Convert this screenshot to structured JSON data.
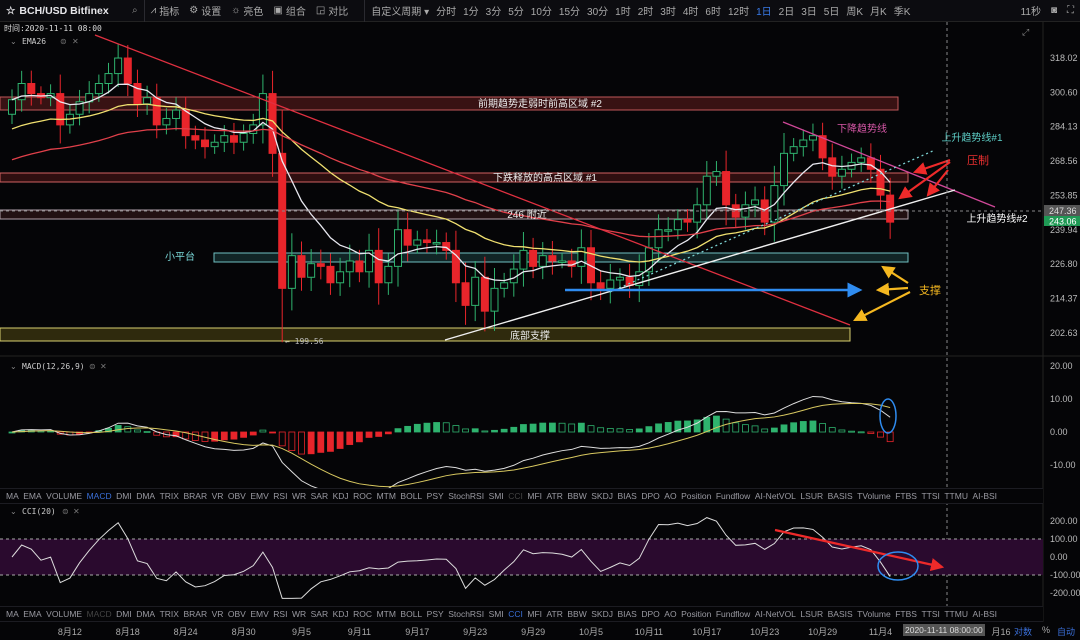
{
  "toolbar": {
    "symbol": "BCH/USD Bitfinex",
    "tools": [
      "指标",
      "设置",
      "亮色",
      "组合",
      "对比"
    ],
    "custom_period": "自定义周期",
    "periods": [
      "分时",
      "1分",
      "3分",
      "5分",
      "10分",
      "15分",
      "30分",
      "1时",
      "2时",
      "3时",
      "4时",
      "6时",
      "12时",
      "1日",
      "2日",
      "3日",
      "5日",
      "周K",
      "月K",
      "季K"
    ],
    "active_period": "1日",
    "countdown": "11秒"
  },
  "main": {
    "time_readout": "时间:2020-11-11 08:00",
    "indicator_label": "EMA26",
    "price_ticks": [
      "318.02",
      "300.60",
      "284.13",
      "268.56",
      "253.85",
      "239.94",
      "226.80",
      "214.37",
      "202.63"
    ],
    "crosshair_price": "247.36",
    "last_price": "243.06",
    "low_label": "199.56",
    "annotations": {
      "zone2": "前期趋势走弱时前高区域 #2",
      "zone1": "下跌释放的高点区域 #1",
      "zone246": "246 附近",
      "platform": "小平台",
      "bottom": "底部支撑",
      "downtrend": "下降趋势线",
      "uptrend1": "上升趋势线#1",
      "uptrend2": "上升趋势线#2",
      "resistance": "压制",
      "support": "支撑"
    },
    "colors": {
      "up": "#2fb36e",
      "down": "#e8252b",
      "ema_fast": "#e8e8f0",
      "ema_mid": "#f0e070",
      "ema_slow": "#e0404a",
      "accent": "#3a7be8"
    }
  },
  "macd": {
    "label": "MACD(12,26,9)",
    "ticks": [
      "20.00",
      "10.00",
      "0.00",
      "-10.00"
    ]
  },
  "cci": {
    "label": "CCI(20)",
    "ticks": [
      "200.00",
      "100.00",
      "0.00",
      "-100.00",
      "-200.00"
    ]
  },
  "indicators": [
    "MA",
    "EMA",
    "VOLUME",
    "MACD",
    "DMI",
    "DMA",
    "TRIX",
    "BRAR",
    "VR",
    "OBV",
    "EMV",
    "RSI",
    "WR",
    "SAR",
    "KDJ",
    "ROC",
    "MTM",
    "BOLL",
    "PSY",
    "StochRSI",
    "SMI",
    "CCI",
    "MFI",
    "ATR",
    "BBW",
    "SKDJ",
    "BIAS",
    "DPO",
    "AO",
    "Position",
    "Fundflow",
    "AI-NetVOL",
    "LSUR",
    "BASIS",
    "TVolume",
    "FTBS",
    "TTSI",
    "TTMU",
    "AI-BSI"
  ],
  "date_axis": {
    "ticks": [
      "8月12",
      "8月18",
      "8月24",
      "8月30",
      "9月5",
      "9月11",
      "9月17",
      "9月23",
      "9月29",
      "10月5",
      "10月11",
      "10月17",
      "10月23",
      "10月29",
      "11月4"
    ],
    "crosshair_date": "2020-11-11 08:00:00",
    "extra": "月16",
    "log_label": "对数",
    "pct_label": "%",
    "auto_label": "自动"
  },
  "chart_data": {
    "type": "candlestick",
    "start_date": "2020-08-06",
    "interval": "1日",
    "close": [
      297,
      305,
      300,
      298,
      300,
      285,
      290,
      296,
      300,
      305,
      310,
      318,
      305,
      295,
      298,
      285,
      288,
      292,
      280,
      278,
      275,
      277,
      280,
      277,
      281,
      285,
      300,
      272,
      218,
      230,
      222,
      227,
      226,
      220,
      224,
      228,
      224,
      232,
      220,
      226,
      240,
      234,
      236,
      235,
      235,
      232,
      220,
      212,
      222,
      210,
      218,
      220,
      225,
      232,
      226,
      230,
      228,
      228,
      226,
      233,
      220,
      218,
      221,
      222,
      219,
      224,
      233,
      240,
      240,
      244,
      243,
      250,
      262,
      264,
      250,
      245,
      250,
      252,
      243,
      258,
      272,
      275,
      278,
      280,
      270,
      262,
      265,
      268,
      270,
      265,
      254,
      243
    ],
    "period_low": 199.56,
    "ylim": [
      199.56,
      322
    ],
    "overlays": [
      "EMA26"
    ]
  }
}
